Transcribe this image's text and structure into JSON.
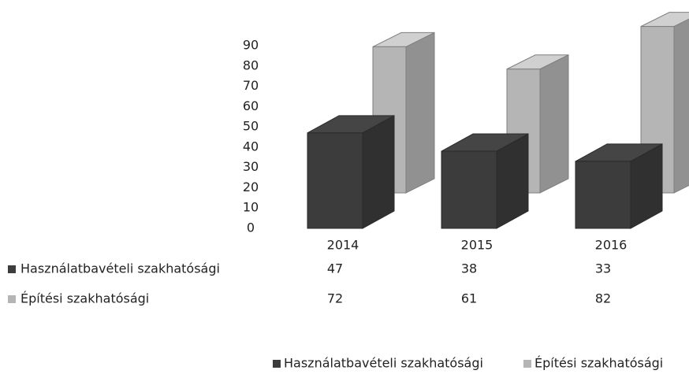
{
  "chart_data": {
    "type": "bar3d",
    "categories": [
      "2014",
      "2015",
      "2016"
    ],
    "series": [
      {
        "name": "Használatbavételi szakhatósági",
        "color": "#3c3c3c",
        "values": [
          47,
          38,
          33
        ]
      },
      {
        "name": "Építési szakhatósági",
        "color": "#b5b5b5",
        "values": [
          72,
          61,
          82
        ]
      }
    ],
    "ylim": [
      0,
      90
    ],
    "yticks": [
      0,
      10,
      20,
      30,
      40,
      50,
      60,
      70,
      80,
      90
    ]
  }
}
